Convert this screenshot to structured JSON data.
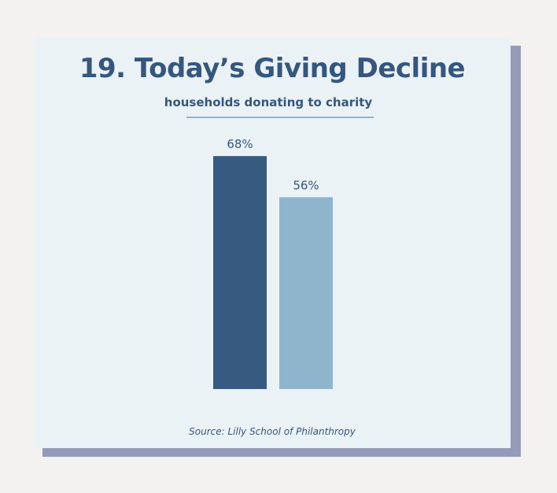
{
  "title": "19. Today’s Giving Decline",
  "subtitle": "households donating to charity",
  "source": "Source: Lilly School of Philanthropy",
  "colors": {
    "background": "#f3f2f0",
    "card": "#ebf2f6",
    "card_shadow": "#939bb8",
    "text": "#35577e",
    "accent_rule": "#8fb5cd"
  },
  "chart_data": {
    "type": "bar",
    "title": "19. Today’s Giving Decline",
    "subtitle": "households donating to charity",
    "categories": [
      "",
      ""
    ],
    "values": [
      68,
      56
    ],
    "value_labels": [
      "68%",
      "56%"
    ],
    "bar_colors": [
      "#365a80",
      "#8fb5cd"
    ],
    "ylim": [
      0,
      100
    ],
    "xlabel": "",
    "ylabel": "",
    "grid": false,
    "legend": "none",
    "axes_visible": false
  }
}
